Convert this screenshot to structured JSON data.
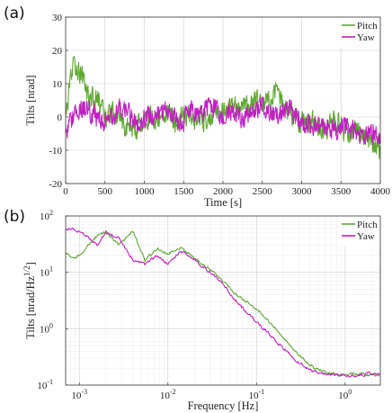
{
  "chart_data": [
    {
      "panel_label": "(a)",
      "type": "line",
      "xlabel": "Time [s]",
      "ylabel": "Tilts [nrad]",
      "xlim": [
        0,
        4000
      ],
      "ylim": [
        -20,
        30
      ],
      "xticks": [
        0,
        500,
        1000,
        1500,
        2000,
        2500,
        3000,
        3500,
        4000
      ],
      "xtick_labels": [
        "0",
        "500",
        "1000",
        "1500",
        "2000",
        "2500",
        "3000",
        "3500",
        "4000"
      ],
      "yticks": [
        -20,
        -10,
        0,
        10,
        20,
        30
      ],
      "ytick_labels": [
        "-20",
        "-10",
        "0",
        "10",
        "20",
        "30"
      ],
      "grid": true,
      "legend": "top-right",
      "x": [
        0,
        100,
        200,
        300,
        400,
        500,
        600,
        700,
        800,
        900,
        1000,
        1100,
        1200,
        1300,
        1400,
        1500,
        1600,
        1700,
        1800,
        1900,
        2000,
        2100,
        2200,
        2300,
        2400,
        2500,
        2600,
        2700,
        2800,
        2900,
        3000,
        3100,
        3200,
        3300,
        3400,
        3500,
        3600,
        3700,
        3800,
        3900,
        4000
      ],
      "series": [
        {
          "name": "Pitch",
          "color": "#5fa832",
          "values": [
            0,
            16,
            13,
            6,
            5,
            0,
            2,
            -2,
            -3,
            -4,
            0,
            0,
            -1,
            2,
            -3,
            0,
            1,
            -2,
            -1,
            2,
            1,
            4,
            2,
            3,
            5,
            3,
            6,
            8,
            2,
            0,
            -2,
            -1,
            -3,
            -4,
            -1,
            -3,
            -5,
            -4,
            -6,
            -8,
            -9
          ]
        },
        {
          "name": "Yaw",
          "color": "#c020c0",
          "values": [
            -4,
            0,
            3,
            2,
            0,
            -1,
            0,
            3,
            1,
            -2,
            0,
            0,
            1,
            2,
            -1,
            -1,
            2,
            0,
            3,
            3,
            -1,
            2,
            0,
            0,
            2,
            4,
            0,
            1,
            3,
            1,
            -1,
            -2,
            -3,
            -2,
            -4,
            -4,
            -3,
            -5,
            -6,
            -5,
            -6
          ]
        }
      ]
    },
    {
      "panel_label": "(b)",
      "type": "line",
      "xlabel": "Frequency [Hz]",
      "ylabel": "Tilts [nrad/Hz^1/2]",
      "xscale": "log",
      "yscale": "log",
      "xlim": [
        0.0007,
        2.5
      ],
      "ylim": [
        0.1,
        100
      ],
      "xticks": [
        0.001,
        0.01,
        0.1,
        1
      ],
      "xtick_labels": [
        [
          "10",
          "-3"
        ],
        [
          "10",
          "-2"
        ],
        [
          "10",
          "-1"
        ],
        [
          "10",
          "0"
        ]
      ],
      "yticks": [
        0.1,
        1,
        10,
        100
      ],
      "ytick_labels": [
        [
          "10",
          "-1"
        ],
        [
          "10",
          "0"
        ],
        [
          "10",
          "1"
        ],
        [
          "10",
          "2"
        ]
      ],
      "grid": true,
      "legend": "top-right",
      "series": [
        {
          "name": "Pitch",
          "color": "#5fa832",
          "x": [
            0.0007,
            0.0009,
            0.0012,
            0.0016,
            0.002,
            0.0028,
            0.004,
            0.0055,
            0.0075,
            0.01,
            0.014,
            0.02,
            0.03,
            0.04,
            0.06,
            0.09,
            0.13,
            0.2,
            0.3,
            0.45,
            0.6,
            0.9,
            1.4,
            2.0,
            2.5
          ],
          "y": [
            22,
            17,
            28,
            45,
            50,
            30,
            55,
            16,
            26,
            22,
            28,
            18,
            11,
            7.5,
            4,
            2.5,
            1.5,
            0.7,
            0.35,
            0.2,
            0.17,
            0.15,
            0.16,
            0.15,
            0.15
          ]
        },
        {
          "name": "Yaw",
          "color": "#c020c0",
          "x": [
            0.0007,
            0.0009,
            0.0012,
            0.0016,
            0.002,
            0.0028,
            0.004,
            0.0055,
            0.0075,
            0.01,
            0.014,
            0.02,
            0.03,
            0.04,
            0.06,
            0.09,
            0.13,
            0.2,
            0.3,
            0.45,
            0.6,
            0.9,
            1.4,
            2.0,
            2.5
          ],
          "y": [
            60,
            58,
            45,
            30,
            52,
            40,
            17,
            14,
            20,
            14,
            24,
            17,
            10,
            6.5,
            3,
            1.5,
            0.9,
            0.45,
            0.25,
            0.17,
            0.16,
            0.15,
            0.15,
            0.16,
            0.15
          ]
        }
      ]
    }
  ]
}
